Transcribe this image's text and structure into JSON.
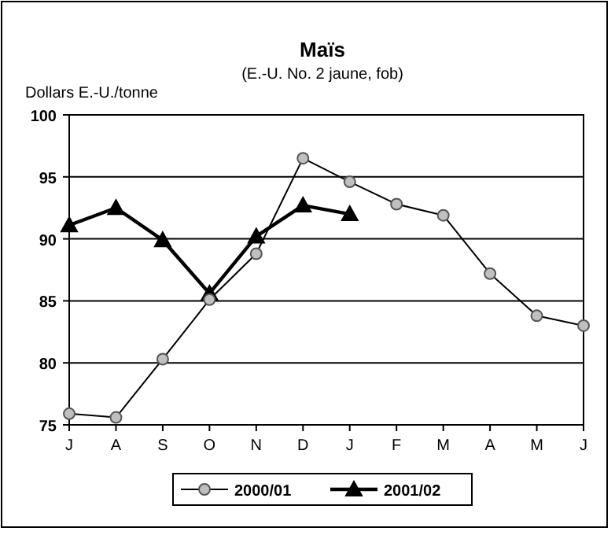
{
  "chart_data": {
    "type": "line",
    "title": "Maïs",
    "subtitle": "(E.-U. No. 2 jaune, fob)",
    "ylabel": "Dollars E.-U./tonne",
    "categories": [
      "J",
      "A",
      "S",
      "O",
      "N",
      "D",
      "J",
      "F",
      "M",
      "A",
      "M",
      "J"
    ],
    "series": [
      {
        "name": "2000/01",
        "color": "#c0c0c0",
        "marker": "circle",
        "values": [
          75.9,
          75.6,
          80.3,
          85.1,
          88.8,
          96.5,
          94.6,
          92.8,
          91.9,
          87.2,
          83.8,
          83.0
        ]
      },
      {
        "name": "2001/02",
        "color": "#000000",
        "marker": "triangle",
        "values": [
          91.1,
          92.5,
          89.9,
          85.6,
          90.2,
          92.7,
          92.0,
          null,
          null,
          null,
          null,
          null
        ]
      }
    ],
    "ylim": [
      75,
      100
    ],
    "yticks": [
      75,
      80,
      85,
      90,
      95,
      100
    ],
    "grid": "y",
    "legend": "bottom"
  }
}
